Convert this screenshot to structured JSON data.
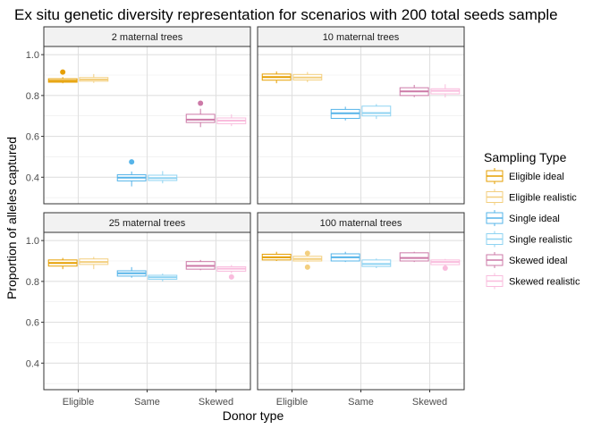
{
  "chart_data": {
    "type": "boxplot",
    "title": "Ex situ genetic diversity representation for scenarios with 200 total seeds sample",
    "xlabel": "Donor type",
    "ylabel": "Proportion of alleles captured",
    "categories": [
      "Eligible",
      "Same",
      "Skewed"
    ],
    "ylim": [
      0.27,
      1.04
    ],
    "yticks": [
      0.4,
      0.6,
      0.8,
      1.0
    ],
    "ytick_labels": [
      "0.4",
      "0.6",
      "0.8",
      "1.0"
    ],
    "grid": true,
    "legend": {
      "title": "Sampling Type",
      "position": "right",
      "items": [
        {
          "label": "Eligible ideal",
          "color": "#E69F00"
        },
        {
          "label": "Eligible realistic",
          "color": "#F3CF7F"
        },
        {
          "label": "Single ideal",
          "color": "#56B4E9"
        },
        {
          "label": "Single realistic",
          "color": "#8FD3F2"
        },
        {
          "label": "Skewed ideal",
          "color": "#CC79A7"
        },
        {
          "label": "Skewed realistic",
          "color": "#F9BCDD"
        }
      ]
    },
    "panels": [
      {
        "title": "2 maternal trees",
        "boxes": [
          {
            "category": "Eligible",
            "series": "Eligible ideal",
            "min": 0.86,
            "q1": 0.865,
            "median": 0.872,
            "q3": 0.882,
            "max": 0.89,
            "outliers": [
              0.915
            ]
          },
          {
            "category": "Eligible",
            "series": "Eligible realistic",
            "min": 0.862,
            "q1": 0.87,
            "median": 0.878,
            "q3": 0.888,
            "max": 0.905,
            "outliers": []
          },
          {
            "category": "Same",
            "series": "Single ideal",
            "min": 0.355,
            "q1": 0.382,
            "median": 0.398,
            "q3": 0.412,
            "max": 0.428,
            "outliers": [
              0.475
            ]
          },
          {
            "category": "Same",
            "series": "Single realistic",
            "min": 0.37,
            "q1": 0.384,
            "median": 0.396,
            "q3": 0.41,
            "max": 0.43,
            "outliers": []
          },
          {
            "category": "Skewed",
            "series": "Skewed ideal",
            "min": 0.645,
            "q1": 0.668,
            "median": 0.682,
            "q3": 0.708,
            "max": 0.735,
            "outliers": [
              0.762
            ]
          },
          {
            "category": "Skewed",
            "series": "Skewed realistic",
            "min": 0.65,
            "q1": 0.662,
            "median": 0.677,
            "q3": 0.69,
            "max": 0.708,
            "outliers": []
          }
        ]
      },
      {
        "title": "10 maternal trees",
        "boxes": [
          {
            "category": "Eligible",
            "series": "Eligible ideal",
            "min": 0.86,
            "q1": 0.875,
            "median": 0.89,
            "q3": 0.905,
            "max": 0.918,
            "outliers": []
          },
          {
            "category": "Eligible",
            "series": "Eligible realistic",
            "min": 0.865,
            "q1": 0.876,
            "median": 0.888,
            "q3": 0.903,
            "max": 0.915,
            "outliers": []
          },
          {
            "category": "Same",
            "series": "Single ideal",
            "min": 0.678,
            "q1": 0.688,
            "median": 0.713,
            "q3": 0.732,
            "max": 0.745,
            "outliers": []
          },
          {
            "category": "Same",
            "series": "Single realistic",
            "min": 0.685,
            "q1": 0.7,
            "median": 0.714,
            "q3": 0.748,
            "max": 0.758,
            "outliers": []
          },
          {
            "category": "Skewed",
            "series": "Skewed ideal",
            "min": 0.792,
            "q1": 0.8,
            "median": 0.82,
            "q3": 0.838,
            "max": 0.852,
            "outliers": []
          },
          {
            "category": "Skewed",
            "series": "Skewed realistic",
            "min": 0.79,
            "q1": 0.808,
            "median": 0.823,
            "q3": 0.833,
            "max": 0.855,
            "outliers": []
          }
        ]
      },
      {
        "title": "25 maternal trees",
        "boxes": [
          {
            "category": "Eligible",
            "series": "Eligible ideal",
            "min": 0.86,
            "q1": 0.875,
            "median": 0.89,
            "q3": 0.905,
            "max": 0.915,
            "outliers": []
          },
          {
            "category": "Eligible",
            "series": "Eligible realistic",
            "min": 0.86,
            "q1": 0.883,
            "median": 0.895,
            "q3": 0.91,
            "max": 0.92,
            "outliers": []
          },
          {
            "category": "Same",
            "series": "Single ideal",
            "min": 0.818,
            "q1": 0.826,
            "median": 0.84,
            "q3": 0.852,
            "max": 0.87,
            "outliers": []
          },
          {
            "category": "Same",
            "series": "Single realistic",
            "min": 0.8,
            "q1": 0.81,
            "median": 0.82,
            "q3": 0.83,
            "max": 0.838,
            "outliers": []
          },
          {
            "category": "Skewed",
            "series": "Skewed ideal",
            "min": 0.855,
            "q1": 0.86,
            "median": 0.876,
            "q3": 0.897,
            "max": 0.905,
            "outliers": []
          },
          {
            "category": "Skewed",
            "series": "Skewed realistic",
            "min": 0.84,
            "q1": 0.85,
            "median": 0.862,
            "q3": 0.872,
            "max": 0.88,
            "outliers": [
              0.822
            ]
          }
        ]
      },
      {
        "title": "100 maternal trees",
        "boxes": [
          {
            "category": "Eligible",
            "series": "Eligible ideal",
            "min": 0.9,
            "q1": 0.905,
            "median": 0.918,
            "q3": 0.933,
            "max": 0.945,
            "outliers": []
          },
          {
            "category": "Eligible",
            "series": "Eligible realistic",
            "min": 0.895,
            "q1": 0.9,
            "median": 0.91,
            "q3": 0.923,
            "max": 0.93,
            "outliers": [
              0.938,
              0.87
            ]
          },
          {
            "category": "Same",
            "series": "Single ideal",
            "min": 0.895,
            "q1": 0.9,
            "median": 0.918,
            "q3": 0.935,
            "max": 0.945,
            "outliers": []
          },
          {
            "category": "Same",
            "series": "Single realistic",
            "min": 0.865,
            "q1": 0.873,
            "median": 0.885,
            "q3": 0.905,
            "max": 0.912,
            "outliers": []
          },
          {
            "category": "Skewed",
            "series": "Skewed ideal",
            "min": 0.895,
            "q1": 0.9,
            "median": 0.915,
            "q3": 0.94,
            "max": 0.945,
            "outliers": []
          },
          {
            "category": "Skewed",
            "series": "Skewed realistic",
            "min": 0.875,
            "q1": 0.882,
            "median": 0.895,
            "q3": 0.905,
            "max": 0.91,
            "outliers": [
              0.865
            ]
          }
        ]
      }
    ]
  }
}
